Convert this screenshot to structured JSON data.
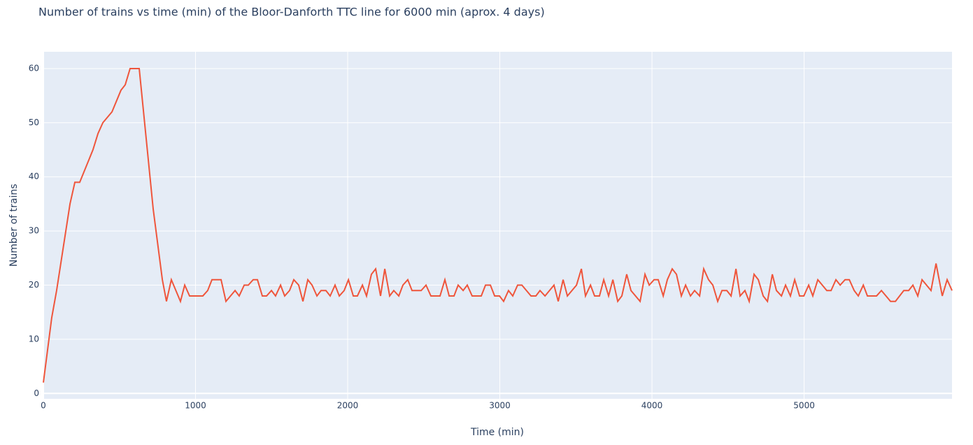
{
  "chart_data": {
    "type": "line",
    "title": "Number of trains vs time (min) of the Bloor-Danforth TTC line for 6000 min (aprox. 4 days)",
    "xlabel": "Time (min)",
    "ylabel": "Number of trains",
    "x": [
      0,
      55,
      87,
      120,
      175,
      207,
      239,
      326,
      359,
      391,
      451,
      510,
      538,
      570,
      630,
      722,
      782,
      809,
      841,
      901,
      929,
      961,
      1048,
      1080,
      1108,
      1168,
      1200,
      1260,
      1287,
      1320,
      1347,
      1379,
      1407,
      1439,
      1467,
      1499,
      1526,
      1559,
      1586,
      1618,
      1646,
      1678,
      1706,
      1738,
      1766,
      1798,
      1825,
      1857,
      1885,
      1917,
      1945,
      1977,
      2005,
      2037,
      2064,
      2097,
      2124,
      2156,
      2184,
      2216,
      2244,
      2276,
      2303,
      2336,
      2363,
      2395,
      2423,
      2483,
      2515,
      2547,
      2607,
      2639,
      2667,
      2699,
      2726,
      2759,
      2786,
      2818,
      2878,
      2906,
      2938,
      2966,
      2998,
      3025,
      3057,
      3085,
      3117,
      3145,
      3205,
      3237,
      3264,
      3297,
      3356,
      3384,
      3416,
      3444,
      3504,
      3536,
      3563,
      3596,
      3623,
      3655,
      3683,
      3715,
      3743,
      3775,
      3802,
      3834,
      3862,
      3922,
      3954,
      3982,
      4014,
      4041,
      4074,
      4101,
      4133,
      4161,
      4193,
      4221,
      4253,
      4280,
      4313,
      4340,
      4372,
      4400,
      4432,
      4460,
      4492,
      4520,
      4552,
      4579,
      4611,
      4639,
      4671,
      4699,
      4731,
      4759,
      4791,
      4818,
      4851,
      4878,
      4910,
      4938,
      4970,
      4998,
      5030,
      5057,
      5090,
      5149,
      5177,
      5209,
      5237,
      5269,
      5297,
      5329,
      5356,
      5389,
      5416,
      5476,
      5508,
      5568,
      5600,
      5655,
      5687,
      5715,
      5747,
      5775,
      5834,
      5867,
      5908,
      5940,
      5972
    ],
    "series": [
      {
        "name": "trains",
        "color": "#ef553b",
        "values": [
          2,
          14,
          19,
          25,
          35,
          39,
          39,
          45,
          48,
          50,
          52,
          56,
          57,
          60,
          60,
          34,
          21,
          17,
          21,
          17,
          20,
          18,
          18,
          19,
          21,
          21,
          17,
          19,
          18,
          20,
          20,
          21,
          21,
          18,
          18,
          19,
          18,
          20,
          18,
          19,
          21,
          20,
          17,
          21,
          20,
          18,
          19,
          19,
          18,
          20,
          18,
          19,
          21,
          18,
          18,
          20,
          18,
          22,
          23,
          18,
          23,
          18,
          19,
          18,
          20,
          21,
          19,
          19,
          20,
          18,
          18,
          21,
          18,
          18,
          20,
          19,
          20,
          18,
          18,
          20,
          20,
          18,
          18,
          17,
          19,
          18,
          20,
          20,
          18,
          18,
          19,
          18,
          20,
          17,
          21,
          18,
          20,
          23,
          18,
          20,
          18,
          18,
          21,
          18,
          21,
          17,
          18,
          22,
          19,
          17,
          22,
          20,
          21,
          21,
          18,
          21,
          23,
          22,
          18,
          20,
          18,
          19,
          18,
          23,
          21,
          20,
          17,
          19,
          19,
          18,
          23,
          18,
          19,
          17,
          22,
          21,
          18,
          17,
          22,
          19,
          18,
          20,
          18,
          21,
          18,
          18,
          20,
          18,
          21,
          19,
          19,
          21,
          20,
          21,
          21,
          19,
          18,
          20,
          18,
          18,
          19,
          17,
          17,
          19,
          19,
          20,
          18,
          21,
          19,
          24,
          18,
          21,
          19
        ]
      }
    ],
    "xlim": [
      0,
      5972
    ],
    "ylim": [
      -1,
      63.1
    ],
    "xticks": [
      0,
      1000,
      2000,
      3000,
      4000,
      5000
    ],
    "yticks": [
      0,
      10,
      20,
      30,
      40,
      50,
      60
    ],
    "grid": true
  }
}
